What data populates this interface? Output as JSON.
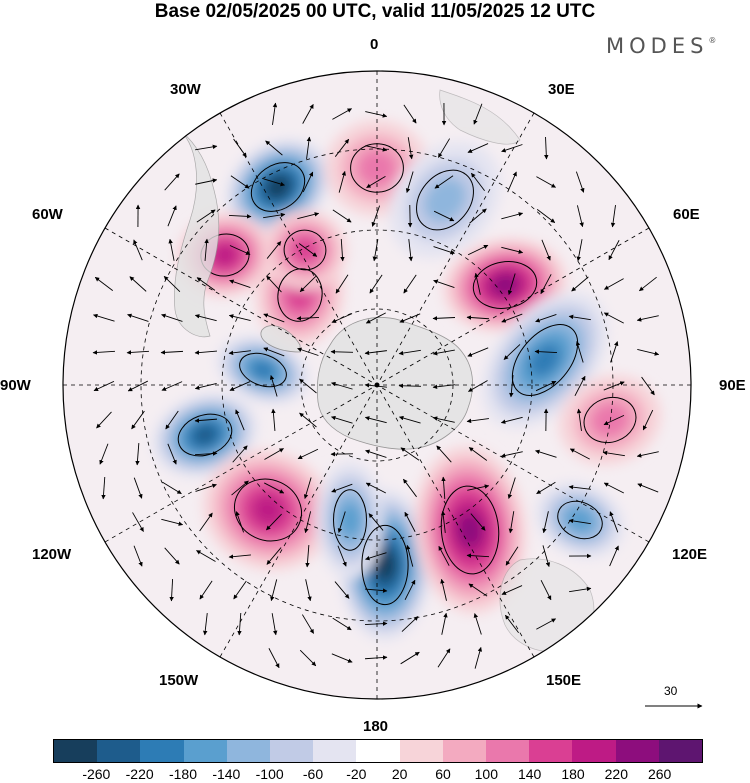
{
  "title": "Base 02/05/2025 00 UTC, valid 11/05/2025 12 UTC",
  "brand": {
    "name": "MODES",
    "mark": "®"
  },
  "longitude_labels": {
    "lon_0": "0",
    "lon_30e": "30E",
    "lon_60e": "60E",
    "lon_90e": "90E",
    "lon_120e": "120E",
    "lon_150e": "150E",
    "lon_180": "180",
    "lon_150w": "150W",
    "lon_120w": "120W",
    "lon_90w": "90W",
    "lon_60w": "60W",
    "lon_30w": "30W"
  },
  "reference_vector": {
    "label": "30"
  },
  "colorbar": {
    "colors": [
      "#173e5c",
      "#1e5c8c",
      "#2d7cb5",
      "#5a9fcf",
      "#8fb6dd",
      "#c1cbe6",
      "#e4e4f1",
      "#ffffff",
      "#f7d4d9",
      "#f3aac0",
      "#ea78ac",
      "#da3f93",
      "#be1b85",
      "#8d0d7d",
      "#5e1570"
    ],
    "ticks": [
      "-260",
      "-220",
      "-180",
      "-140",
      "-100",
      "-60",
      "-20",
      "20",
      "60",
      "100",
      "140",
      "180",
      "220",
      "260"
    ]
  },
  "anomaly_centers": [
    {
      "type": "low",
      "value": -260
    },
    {
      "type": "high",
      "value": 100
    },
    {
      "type": "high",
      "value": 220
    },
    {
      "type": "low",
      "value": -180
    },
    {
      "type": "low",
      "value": -220
    },
    {
      "type": "high",
      "value": 140
    },
    {
      "type": "low",
      "value": -100
    },
    {
      "type": "high",
      "value": 180
    },
    {
      "type": "low",
      "value": -260
    },
    {
      "type": "high",
      "value": 240
    },
    {
      "type": "low",
      "value": -200
    },
    {
      "type": "high",
      "value": 100
    },
    {
      "type": "low",
      "value": -140
    },
    {
      "type": "high",
      "value": 180
    },
    {
      "type": "high",
      "value": 160
    },
    {
      "type": "low",
      "value": -140
    }
  ]
}
